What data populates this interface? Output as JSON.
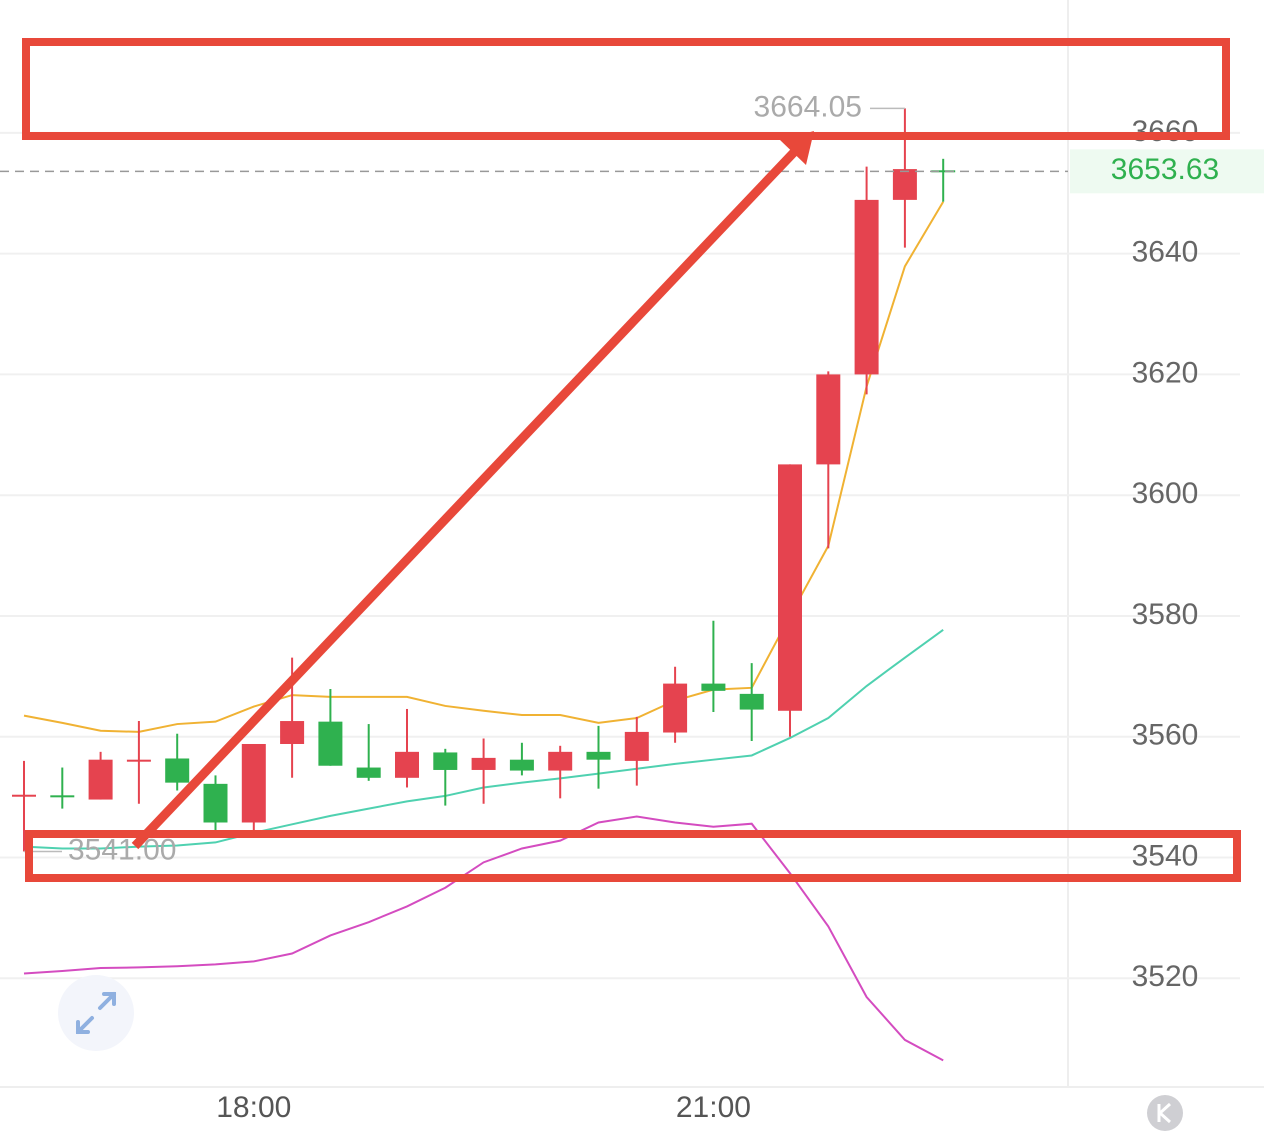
{
  "chart_data": {
    "type": "candlestick",
    "categories": [
      null,
      null,
      null,
      null,
      null,
      null,
      "18:00",
      null,
      null,
      null,
      null,
      null,
      null,
      null,
      null,
      null,
      null,
      null,
      "21:00",
      null,
      null,
      null,
      null,
      null,
      null
    ],
    "open": [
      3550.2,
      3550.3,
      3549.6,
      3556.0,
      3556.4,
      3552.2,
      3545.8,
      3558.8,
      3562.5,
      3554.9,
      3553.2,
      3557.4,
      3554.5,
      3556.2,
      3554.4,
      3557.5,
      3556.0,
      3560.7,
      3568.8,
      3567.1,
      3564.3,
      3605.1,
      3620.0,
      3648.9,
      3653.8
    ],
    "high": [
      3556.0,
      3554.9,
      3557.5,
      3562.6,
      3560.5,
      3553.6,
      3558.8,
      3573.1,
      3567.9,
      3562.1,
      3564.6,
      3558.0,
      3559.7,
      3559.0,
      3558.5,
      3561.8,
      3563.3,
      3571.6,
      3579.2,
      3572.2,
      3605.1,
      3620.5,
      3654.4,
      3664.05,
      3655.7
    ],
    "low": [
      3541.0,
      3548.1,
      3549.6,
      3548.9,
      3551.1,
      3544.5,
      3544.5,
      3553.2,
      3555.2,
      3552.7,
      3551.6,
      3548.6,
      3548.9,
      3553.6,
      3549.8,
      3551.4,
      3551.9,
      3559.0,
      3564.1,
      3559.3,
      3560.0,
      3591.2,
      3616.7,
      3641.0,
      3648.6
    ],
    "close": [
      3550.4,
      3550.0,
      3556.2,
      3556.2,
      3552.4,
      3545.8,
      3558.8,
      3562.6,
      3555.2,
      3553.2,
      3557.5,
      3554.5,
      3556.5,
      3554.4,
      3557.5,
      3556.2,
      3560.8,
      3568.8,
      3567.6,
      3564.5,
      3605.1,
      3620.0,
      3648.9,
      3654.0,
      3653.63
    ],
    "up_color": "#e5434f",
    "down_color": "#2fb14f",
    "lines": [
      {
        "color": "#f0b233",
        "values": [
          3563.5,
          3562.3,
          3561.0,
          3560.8,
          3562.1,
          3562.5,
          3565.0,
          3566.9,
          3566.6,
          3566.6,
          3566.6,
          3565.1,
          3564.3,
          3563.6,
          3563.6,
          3562.3,
          3563.1,
          3566.0,
          3567.8,
          3568.1,
          3580.0,
          3591.6,
          3618.0,
          3637.9,
          3648.6
        ]
      },
      {
        "color": "#4fd1b0",
        "values": [
          3541.8,
          3541.5,
          3541.5,
          3541.8,
          3542.0,
          3542.5,
          3544.1,
          3545.5,
          3546.9,
          3548.1,
          3549.3,
          3550.2,
          3551.6,
          3552.4,
          3553.1,
          3553.9,
          3554.7,
          3555.5,
          3556.2,
          3556.9,
          3559.8,
          3563.1,
          3568.4,
          3573.1,
          3577.7
        ]
      },
      {
        "color": "#d44cc0",
        "values": [
          3520.8,
          3521.2,
          3521.7,
          3521.8,
          3522.0,
          3522.3,
          3522.8,
          3524.1,
          3527.1,
          3529.3,
          3531.9,
          3535.0,
          3539.2,
          3541.5,
          3542.8,
          3545.8,
          3546.8,
          3545.8,
          3545.1,
          3545.6,
          3537.4,
          3528.6,
          3516.9,
          3509.8,
          3506.4
        ]
      }
    ],
    "ylim": [
      3502,
      3682
    ],
    "yticks": [
      3520,
      3540,
      3560,
      3580,
      3600,
      3620,
      3640,
      3660
    ],
    "grid": true,
    "last_price": 3653.63,
    "annotations": [
      {
        "value": 3664.05,
        "label": "3664.05"
      },
      {
        "value": 3541,
        "label": "3541.00"
      }
    ]
  }
}
